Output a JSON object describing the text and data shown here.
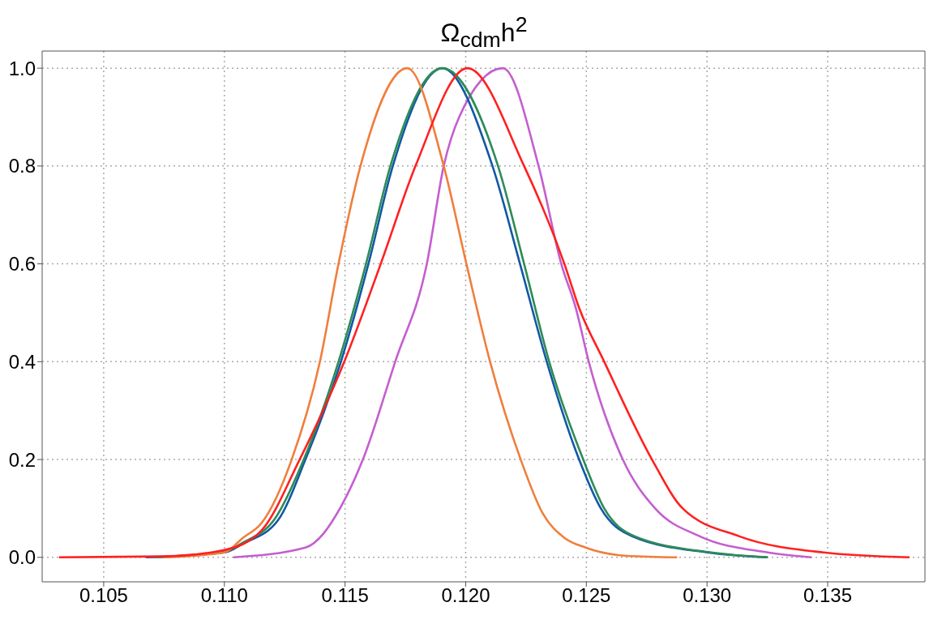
{
  "chart_data": {
    "type": "line",
    "title": "Ω$_{cdm}$h$^{2}$",
    "xlim": [
      0.10245,
      0.13903
    ],
    "xticks": [
      0.105,
      {
        "value": 0.11,
        "label": "0.110"
      },
      0.115,
      {
        "value": 0.12,
        "label": "0.120"
      },
      0.125,
      {
        "value": 0.13,
        "label": "0.130"
      },
      0.135
    ],
    "ylim": [
      -0.05,
      1.035
    ],
    "yticks": [
      {
        "value": 0,
        "label": "0.0"
      },
      {
        "value": 0.2,
        "label": "0.2"
      },
      {
        "value": 0.4,
        "label": "0.4"
      },
      {
        "value": 0.6,
        "label": "0.6"
      },
      {
        "value": 0.8,
        "label": "0.8"
      },
      {
        "value": 1,
        "label": "1.0"
      }
    ],
    "grid": true,
    "line_style": "solid",
    "series": [
      {
        "color": "#c45ecf",
        "x": [
          0.11037,
          0.11336,
          0.11413,
          0.11446,
          0.11574,
          0.11708,
          0.11839,
          0.11909,
          0.11973,
          0.12154,
          0.12302,
          0.12396,
          0.12456,
          0.1251,
          0.12651,
          0.12785,
          0.1297,
          0.13252,
          0.13433
        ],
        "values": [
          0,
          0.02,
          0.05,
          0.073,
          0.2,
          0.4,
          0.6,
          0.8,
          0.9,
          1,
          0.8,
          0.6,
          0.51,
          0.4,
          0.2,
          0.1,
          0.043,
          0.01,
          0
        ]
      },
      {
        "color": "#1258a5",
        "x": [
          0.10675,
          0.11,
          0.11077,
          0.11221,
          0.11336,
          0.11483,
          0.11597,
          0.11698,
          0.11903,
          0.12111,
          0.12225,
          0.12336,
          0.1247,
          0.1256,
          0.1269,
          0.13,
          0.1325
        ],
        "values": [
          0,
          0.01,
          0.028,
          0.075,
          0.2,
          0.4,
          0.6,
          0.8,
          1,
          0.8,
          0.6,
          0.4,
          0.2,
          0.1,
          0.043,
          0.01,
          0
        ]
      },
      {
        "color": "#2e8b57",
        "x": [
          0.10708,
          0.11,
          0.11077,
          0.11211,
          0.11329,
          0.11473,
          0.11587,
          0.11688,
          0.11903,
          0.12134,
          0.12242,
          0.12346,
          0.12487,
          0.12574,
          0.12701,
          0.13017,
          0.13252
        ],
        "values": [
          0,
          0.012,
          0.03,
          0.08,
          0.2,
          0.4,
          0.6,
          0.8,
          1,
          0.8,
          0.6,
          0.4,
          0.2,
          0.1,
          0.043,
          0.01,
          0
        ]
      },
      {
        "color": "#f07e3c",
        "x": [
          0.10748,
          0.11,
          0.11077,
          0.11154,
          0.11279,
          0.11396,
          0.11473,
          0.11564,
          0.11758,
          0.11909,
          0.12003,
          0.12101,
          0.12228,
          0.12319,
          0.12409,
          0.12497,
          0.12668,
          0.12876
        ],
        "values": [
          0,
          0.01,
          0.04,
          0.07,
          0.2,
          0.4,
          0.6,
          0.8,
          1,
          0.8,
          0.6,
          0.4,
          0.2,
          0.09,
          0.04,
          0.02,
          0.003,
          0
        ]
      },
      {
        "color": "#ff2020",
        "x": [
          0.10315,
          0.1075,
          0.11,
          0.11154,
          0.11312,
          0.11497,
          0.11648,
          0.11792,
          0.12007,
          0.12242,
          0.12409,
          0.1247,
          0.12574,
          0.12772,
          0.12899,
          0.13134,
          0.13483,
          0.13839
        ],
        "values": [
          0,
          0.002,
          0.015,
          0.055,
          0.2,
          0.4,
          0.6,
          0.8,
          1,
          0.8,
          0.6,
          0.51,
          0.4,
          0.2,
          0.1,
          0.043,
          0.01,
          0
        ]
      }
    ]
  }
}
